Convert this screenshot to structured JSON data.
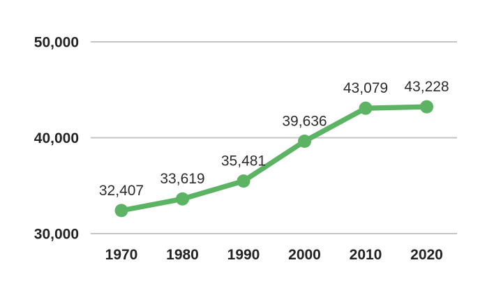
{
  "chart_data": {
    "type": "line",
    "title": "",
    "xlabel": "",
    "ylabel": "",
    "categories": [
      "1970",
      "1980",
      "1990",
      "2000",
      "2010",
      "2020"
    ],
    "series": [
      {
        "name": "series-1",
        "values": [
          32407,
          33619,
          35481,
          39636,
          43079,
          43228
        ]
      }
    ],
    "point_labels": [
      "32,407",
      "33,619",
      "35,481",
      "39,636",
      "43,079",
      "43,228"
    ],
    "y_ticks": [
      {
        "value": 30000,
        "label": "30,000"
      },
      {
        "value": 40000,
        "label": "40,000"
      },
      {
        "value": 50000,
        "label": "50,000"
      }
    ],
    "ylim": [
      30000,
      50000
    ],
    "grid": "horizontal",
    "legend": "none",
    "colors": {
      "line": "#5cb363",
      "marker": "#5cb363",
      "grid": "#c5c5c5",
      "axis_text": "#232323",
      "label_text": "#2b2b2b",
      "background": "#ffffff"
    }
  }
}
